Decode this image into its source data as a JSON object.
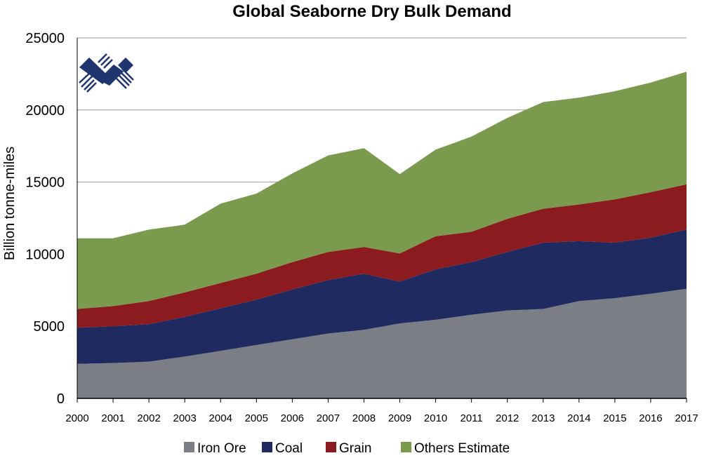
{
  "chart_data": {
    "type": "area",
    "stacked": true,
    "title": "Global Seaborne Dry Bulk Demand",
    "xlabel": "",
    "ylabel": "Billion tonne-miles",
    "ylim": [
      0,
      25000
    ],
    "yticks": [
      0,
      5000,
      10000,
      15000,
      20000,
      25000
    ],
    "grid": true,
    "legend_position": "bottom",
    "categories": [
      "2000",
      "2001",
      "2002",
      "2003",
      "2004",
      "2005",
      "2006",
      "2007",
      "2008",
      "2009",
      "2010",
      "2011",
      "2012",
      "2013",
      "2014",
      "2015",
      "2016",
      "2017"
    ],
    "series": [
      {
        "name": "Iron Ore",
        "color": "#7b7e84",
        "values": [
          2400,
          2450,
          2550,
          2900,
          3300,
          3700,
          4100,
          4500,
          4750,
          5200,
          5450,
          5800,
          6100,
          6200,
          6750,
          6950,
          7250,
          7600
        ]
      },
      {
        "name": "Coal",
        "color": "#1f2a60",
        "values": [
          2500,
          2550,
          2600,
          2750,
          2950,
          3150,
          3450,
          3700,
          3900,
          2900,
          3500,
          3650,
          4050,
          4600,
          4150,
          3850,
          3900,
          4100
        ]
      },
      {
        "name": "Grain",
        "color": "#8b1b1f",
        "values": [
          1300,
          1400,
          1600,
          1700,
          1750,
          1800,
          1900,
          1950,
          1850,
          1950,
          2300,
          2100,
          2300,
          2350,
          2550,
          3000,
          3150,
          3150
        ]
      },
      {
        "name": "Others Estimate",
        "color": "#7a9a4d",
        "values": [
          4900,
          4700,
          4950,
          4700,
          5500,
          5550,
          6150,
          6700,
          6850,
          5500,
          6000,
          6600,
          7000,
          7400,
          7400,
          7500,
          7600,
          7800
        ]
      }
    ]
  },
  "logo": {
    "name": "company-logo"
  }
}
